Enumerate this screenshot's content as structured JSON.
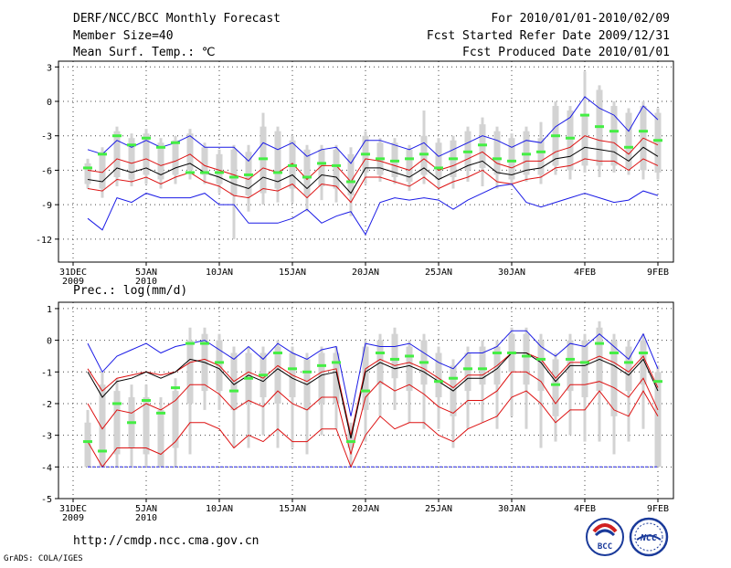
{
  "header": {
    "left": [
      "DERF/NCC/BCC Monthly Forecast",
      "Member Size=40",
      "Mean Surf. Temp.: ℃"
    ],
    "right": [
      "For 2010/01/01-2010/02/09",
      "Fcst Started Refer Date 2009/12/31",
      "Fcst Produced Date 2010/01/01"
    ]
  },
  "x_ticks": [
    {
      "day": 0,
      "label": "31DEC",
      "sub": "2009"
    },
    {
      "day": 5,
      "label": "5JAN",
      "sub": "2010"
    },
    {
      "day": 10,
      "label": "10JAN",
      "sub": ""
    },
    {
      "day": 15,
      "label": "15JAN",
      "sub": ""
    },
    {
      "day": 20,
      "label": "20JAN",
      "sub": ""
    },
    {
      "day": 25,
      "label": "25JAN",
      "sub": ""
    },
    {
      "day": 30,
      "label": "30JAN",
      "sub": ""
    },
    {
      "day": 35,
      "label": "4FEB",
      "sub": ""
    },
    {
      "day": 40,
      "label": "9FEB",
      "sub": ""
    }
  ],
  "colors": {
    "box": "#d3d3d3",
    "green": "#44ee44",
    "blue": "#1a1ae6",
    "red": "#dd1111",
    "black": "#000000",
    "grid": "#444444"
  },
  "footer": {
    "url": "http://cmdp.ncc.cma.gov.cn",
    "credit": "GrADS: COLA/IGES",
    "logo_left": "BCC",
    "logo_right": "NCC"
  },
  "chart_data": [
    {
      "type": "box",
      "title": "Mean Surf. Temp.: ℃",
      "ylim": [
        -14,
        3.5
      ],
      "yticks": [
        3,
        0,
        -3,
        -6,
        -9,
        -12
      ],
      "x": [
        1,
        2,
        3,
        4,
        5,
        6,
        7,
        8,
        9,
        10,
        11,
        12,
        13,
        14,
        15,
        16,
        17,
        18,
        19,
        20,
        21,
        22,
        23,
        24,
        25,
        26,
        27,
        28,
        29,
        30,
        31,
        32,
        33,
        34,
        35,
        36,
        37,
        38,
        39,
        40
      ],
      "box_low": [
        -7.2,
        -7.6,
        -6.6,
        -6.8,
        -6.4,
        -6.8,
        -6.4,
        -6.0,
        -6.4,
        -7.2,
        -8.2,
        -8.2,
        -8.0,
        -7.6,
        -7.6,
        -8.2,
        -7.4,
        -7.6,
        -8.2,
        -6.2,
        -6.4,
        -6.6,
        -7.0,
        -6.4,
        -6.8,
        -6.6,
        -6.0,
        -5.8,
        -6.4,
        -6.8,
        -6.4,
        -6.4,
        -5.6,
        -6.0,
        -5.6,
        -5.6,
        -5.6,
        -5.8,
        -6.0,
        -6.2
      ],
      "box_high": [
        -5.4,
        -4.4,
        -2.6,
        -3.2,
        -2.8,
        -3.6,
        -3.4,
        -2.8,
        -4.0,
        -4.6,
        -4.2,
        -4.4,
        -2.2,
        -2.6,
        -3.4,
        -4.2,
        -4.2,
        -4.2,
        -4.6,
        -3.0,
        -3.6,
        -3.6,
        -4.2,
        -3.0,
        -3.6,
        -3.4,
        -2.6,
        -2.0,
        -2.6,
        -3.2,
        -2.6,
        -3.2,
        -0.4,
        -0.8,
        -1.2,
        1.0,
        -0.4,
        -1.0,
        -0.4,
        -1.0
      ],
      "whisker_low": [
        -7.6,
        -8.4,
        -7.4,
        -7.4,
        -7.2,
        -7.6,
        -7.2,
        -6.8,
        -7.2,
        -8.0,
        -12.0,
        -9.6,
        -9.0,
        -8.8,
        -8.8,
        -9.6,
        -8.6,
        -8.8,
        -10.0,
        -7.2,
        -7.0,
        -7.2,
        -7.8,
        -7.2,
        -7.6,
        -7.6,
        -7.0,
        -7.4,
        -7.6,
        -7.4,
        -7.0,
        -7.2,
        -6.4,
        -6.8,
        -6.2,
        -6.6,
        -6.2,
        -6.4,
        -6.8,
        -6.8
      ],
      "whisker_high": [
        -5.0,
        -4.0,
        -2.2,
        -2.8,
        -2.4,
        -3.2,
        -3.0,
        -2.4,
        -3.6,
        -4.2,
        -3.8,
        -3.8,
        -1.0,
        -2.2,
        -3.0,
        -3.8,
        -3.8,
        -3.8,
        -4.0,
        -2.6,
        -3.2,
        -3.2,
        -3.8,
        -0.8,
        -3.2,
        -3.0,
        -2.2,
        -1.4,
        -2.2,
        -2.8,
        -2.2,
        -1.8,
        0.0,
        -0.4,
        2.6,
        1.4,
        0.0,
        -0.6,
        0.0,
        -0.6
      ],
      "green": [
        -5.8,
        -4.6,
        -3.0,
        -3.8,
        -3.2,
        -4.0,
        -3.6,
        -6.2,
        -6.2,
        -6.2,
        -6.6,
        -6.4,
        -5.0,
        -6.2,
        -5.6,
        -6.6,
        -5.4,
        -5.6,
        -7.0,
        -4.6,
        -5.0,
        -5.2,
        -5.0,
        -4.6,
        -5.8,
        -5.0,
        -4.4,
        -3.8,
        -5.0,
        -5.2,
        -4.6,
        -4.4,
        -3.0,
        -3.2,
        -1.2,
        -2.2,
        -2.6,
        -4.0,
        -2.6,
        -3.4
      ],
      "series": [
        {
          "name": "max",
          "color": "#1a1ae6",
          "values": [
            -4.2,
            -4.6,
            -3.4,
            -4.0,
            -3.4,
            -4.0,
            -3.6,
            -3.0,
            -4.0,
            -4.0,
            -4.0,
            -5.2,
            -3.6,
            -4.2,
            -3.6,
            -4.8,
            -4.2,
            -4.0,
            -5.4,
            -3.4,
            -3.4,
            -3.8,
            -4.2,
            -3.6,
            -4.8,
            -4.2,
            -3.6,
            -3.0,
            -3.4,
            -4.0,
            -3.4,
            -3.6,
            -2.2,
            -1.4,
            0.4,
            -0.6,
            -1.2,
            -2.6,
            -0.4,
            -1.6
          ]
        },
        {
          "name": "upper",
          "color": "#dd1111",
          "values": [
            -6.0,
            -6.2,
            -5.0,
            -5.4,
            -5.0,
            -5.6,
            -5.2,
            -4.6,
            -5.6,
            -6.0,
            -6.4,
            -6.8,
            -5.8,
            -6.2,
            -5.4,
            -6.8,
            -5.6,
            -5.6,
            -7.0,
            -5.0,
            -5.2,
            -5.6,
            -6.0,
            -5.0,
            -6.0,
            -5.6,
            -5.0,
            -4.4,
            -5.4,
            -5.8,
            -5.2,
            -5.2,
            -4.4,
            -4.0,
            -3.0,
            -3.4,
            -3.6,
            -4.6,
            -3.2,
            -3.8
          ]
        },
        {
          "name": "mean",
          "color": "#000000",
          "values": [
            -6.8,
            -7.0,
            -5.8,
            -6.2,
            -5.8,
            -6.4,
            -5.8,
            -5.4,
            -6.2,
            -6.6,
            -7.2,
            -7.6,
            -6.6,
            -7.0,
            -6.4,
            -7.6,
            -6.4,
            -6.6,
            -8.0,
            -5.8,
            -5.8,
            -6.2,
            -6.6,
            -5.8,
            -6.8,
            -6.2,
            -5.6,
            -5.2,
            -6.2,
            -6.4,
            -6.0,
            -5.8,
            -5.0,
            -4.8,
            -4.0,
            -4.2,
            -4.4,
            -5.2,
            -4.0,
            -4.8
          ]
        },
        {
          "name": "lower",
          "color": "#dd1111",
          "values": [
            -7.6,
            -7.8,
            -6.8,
            -7.0,
            -6.6,
            -7.2,
            -6.6,
            -6.2,
            -7.0,
            -7.4,
            -8.2,
            -8.4,
            -7.6,
            -7.8,
            -7.2,
            -8.4,
            -7.2,
            -7.4,
            -8.8,
            -6.6,
            -6.6,
            -7.0,
            -7.4,
            -6.6,
            -7.6,
            -7.0,
            -6.6,
            -6.0,
            -7.0,
            -7.2,
            -6.8,
            -6.6,
            -5.8,
            -5.6,
            -5.0,
            -5.2,
            -5.2,
            -6.0,
            -5.0,
            -5.6
          ]
        },
        {
          "name": "min",
          "color": "#1a1ae6",
          "values": [
            -10.2,
            -11.2,
            -8.4,
            -8.8,
            -8.0,
            -8.4,
            -8.4,
            -8.4,
            -8.0,
            -9.0,
            -9.0,
            -10.6,
            -10.6,
            -10.6,
            -10.2,
            -9.4,
            -10.6,
            -10.0,
            -9.6,
            -11.6,
            -8.8,
            -8.4,
            -8.6,
            -8.4,
            -8.6,
            -9.4,
            -8.6,
            -8.0,
            -7.4,
            -7.2,
            -8.8,
            -9.2,
            -8.8,
            -8.4,
            -8.0,
            -8.4,
            -8.8,
            -8.6,
            -7.8,
            -8.2
          ]
        }
      ]
    },
    {
      "type": "box",
      "title": "Prec.: log(mm/d)",
      "ylim": [
        -5,
        1.2
      ],
      "yticks": [
        1,
        0,
        -1,
        -2,
        -3,
        -4,
        -5
      ],
      "x": [
        1,
        2,
        3,
        4,
        5,
        6,
        7,
        8,
        9,
        10,
        11,
        12,
        13,
        14,
        15,
        16,
        17,
        18,
        19,
        20,
        21,
        22,
        23,
        24,
        25,
        26,
        27,
        28,
        29,
        30,
        31,
        32,
        33,
        34,
        35,
        36,
        37,
        38,
        39,
        40
      ],
      "box_low": [
        -4.0,
        -4.0,
        -3.6,
        -3.4,
        -3.6,
        -4.0,
        -3.4,
        -2.0,
        -1.6,
        -1.6,
        -2.2,
        -2.0,
        -1.8,
        -2.0,
        -1.8,
        -2.2,
        -2.0,
        -2.0,
        -3.4,
        -2.2,
        -1.4,
        -1.2,
        -1.6,
        -1.4,
        -1.8,
        -2.4,
        -1.6,
        -1.4,
        -1.4,
        -1.0,
        -1.4,
        -1.6,
        -2.4,
        -1.6,
        -1.8,
        -1.6,
        -2.4,
        -1.6,
        -1.4,
        -4.0
      ],
      "box_high": [
        -2.6,
        -1.4,
        -1.6,
        -1.8,
        -1.8,
        -2.2,
        -1.6,
        0.0,
        0.2,
        0.0,
        -0.4,
        -0.4,
        -0.4,
        -0.2,
        -0.4,
        -0.6,
        -0.4,
        -0.4,
        -2.8,
        -0.2,
        0.0,
        0.2,
        -0.2,
        0.0,
        -0.4,
        -0.8,
        -0.4,
        -0.2,
        -0.2,
        0.2,
        0.2,
        0.0,
        -0.6,
        0.0,
        0.0,
        0.4,
        0.0,
        -0.2,
        0.0,
        -1.0
      ],
      "whisker_low": [
        -4.0,
        -4.0,
        -4.0,
        -4.0,
        -4.0,
        -4.0,
        -4.0,
        -3.6,
        -2.2,
        -2.2,
        -3.4,
        -3.4,
        -3.0,
        -3.4,
        -3.4,
        -3.6,
        -3.0,
        -2.8,
        -4.0,
        -3.2,
        -2.4,
        -2.2,
        -2.6,
        -2.8,
        -2.8,
        -3.4,
        -2.8,
        -2.6,
        -2.8,
        -2.4,
        -2.8,
        -3.4,
        -3.2,
        -3.0,
        -3.2,
        -3.2,
        -3.6,
        -3.2,
        -2.8,
        -4.0
      ],
      "whisker_high": [
        -2.2,
        -1.0,
        -1.2,
        -1.4,
        -1.4,
        -1.8,
        -1.2,
        0.4,
        0.4,
        0.2,
        -0.2,
        -0.2,
        -0.2,
        0.0,
        -0.2,
        -0.4,
        -0.2,
        -0.2,
        -2.6,
        0.0,
        0.2,
        0.4,
        0.0,
        0.2,
        -0.2,
        -0.6,
        -0.2,
        0.0,
        0.0,
        0.4,
        0.4,
        0.2,
        -0.4,
        0.2,
        0.2,
        0.6,
        0.2,
        0.0,
        0.2,
        -0.8
      ],
      "green": [
        -3.2,
        -3.5,
        -2.0,
        -2.6,
        -1.9,
        -2.3,
        -1.5,
        -0.1,
        -0.1,
        -0.7,
        -1.6,
        -1.2,
        -1.1,
        -0.4,
        -0.9,
        -1.0,
        -0.8,
        -0.7,
        -3.2,
        -1.6,
        -0.4,
        -0.6,
        -0.5,
        -0.7,
        -1.3,
        -1.2,
        -0.9,
        -0.9,
        -0.4,
        -0.4,
        -0.5,
        -0.6,
        -1.4,
        -0.6,
        -0.7,
        -0.1,
        -0.4,
        -0.7,
        -0.4,
        -1.3
      ],
      "series": [
        {
          "name": "max",
          "color": "#1a1ae6",
          "values": [
            -0.1,
            -1.0,
            -0.5,
            -0.3,
            -0.1,
            -0.4,
            -0.2,
            -0.1,
            0.0,
            -0.3,
            -0.6,
            -0.2,
            -0.6,
            -0.1,
            -0.4,
            -0.6,
            -0.3,
            -0.2,
            -2.4,
            -0.1,
            -0.2,
            -0.2,
            -0.1,
            -0.4,
            -0.7,
            -0.9,
            -0.4,
            -0.4,
            -0.2,
            0.3,
            0.3,
            -0.2,
            -0.5,
            -0.1,
            -0.2,
            0.2,
            -0.2,
            -0.6,
            0.2,
            -0.9
          ]
        },
        {
          "name": "upper",
          "color": "#dd1111",
          "values": [
            -0.9,
            -1.6,
            -1.2,
            -1.1,
            -1.0,
            -1.1,
            -1.0,
            -0.7,
            -0.6,
            -0.8,
            -1.3,
            -1.0,
            -1.2,
            -0.8,
            -1.1,
            -1.3,
            -1.0,
            -0.9,
            -3.0,
            -0.9,
            -0.6,
            -0.8,
            -0.7,
            -0.9,
            -1.2,
            -1.5,
            -1.1,
            -1.1,
            -0.8,
            -0.4,
            -0.4,
            -0.6,
            -1.2,
            -0.7,
            -0.7,
            -0.5,
            -0.7,
            -1.0,
            -0.5,
            -1.5
          ]
        },
        {
          "name": "mean",
          "color": "#000000",
          "values": [
            -1.0,
            -1.8,
            -1.3,
            -1.2,
            -1.0,
            -1.2,
            -1.0,
            -0.6,
            -0.7,
            -0.9,
            -1.4,
            -1.1,
            -1.3,
            -0.9,
            -1.2,
            -1.4,
            -1.1,
            -1.0,
            -3.1,
            -1.0,
            -0.7,
            -0.9,
            -0.8,
            -1.0,
            -1.3,
            -1.6,
            -1.2,
            -1.2,
            -0.9,
            -0.4,
            -0.4,
            -0.7,
            -1.3,
            -0.8,
            -0.8,
            -0.6,
            -0.8,
            -1.1,
            -0.6,
            -1.6
          ]
        },
        {
          "name": "lower",
          "color": "#dd1111",
          "values": [
            -2.0,
            -2.8,
            -2.2,
            -2.3,
            -2.0,
            -2.2,
            -1.9,
            -1.4,
            -1.4,
            -1.7,
            -2.2,
            -1.9,
            -2.1,
            -1.6,
            -2.0,
            -2.2,
            -1.8,
            -1.8,
            -3.6,
            -1.8,
            -1.3,
            -1.6,
            -1.4,
            -1.7,
            -2.1,
            -2.3,
            -1.9,
            -1.9,
            -1.6,
            -1.0,
            -1.0,
            -1.3,
            -2.0,
            -1.4,
            -1.4,
            -1.3,
            -1.5,
            -1.8,
            -1.2,
            -2.2
          ]
        },
        {
          "name": "lowest",
          "color": "#dd1111",
          "values": [
            -3.2,
            -4.0,
            -3.4,
            -3.4,
            -3.4,
            -3.6,
            -3.2,
            -2.6,
            -2.6,
            -2.8,
            -3.4,
            -3.0,
            -3.2,
            -2.8,
            -3.2,
            -3.2,
            -2.8,
            -2.8,
            -4.0,
            -3.0,
            -2.4,
            -2.8,
            -2.6,
            -2.6,
            -3.0,
            -3.2,
            -2.8,
            -2.6,
            -2.4,
            -1.8,
            -1.6,
            -2.0,
            -2.6,
            -2.2,
            -2.2,
            -1.6,
            -2.2,
            -2.4,
            -1.6,
            -2.4
          ]
        },
        {
          "name": "min",
          "color": "#1a1ae6",
          "dashed": true,
          "values": [
            -4.0,
            -4.0,
            -4.0,
            -4.0,
            -4.0,
            -4.0,
            -4.0,
            -4.0,
            -4.0,
            -4.0,
            -4.0,
            -4.0,
            -4.0,
            -4.0,
            -4.0,
            -4.0,
            -4.0,
            -4.0,
            -4.0,
            -4.0,
            -4.0,
            -4.0,
            -4.0,
            -4.0,
            -4.0,
            -4.0,
            -4.0,
            -4.0,
            -4.0,
            -4.0,
            -4.0,
            -4.0,
            -4.0,
            -4.0,
            -4.0,
            -4.0,
            -4.0,
            -4.0,
            -4.0,
            -4.0
          ]
        }
      ]
    }
  ]
}
